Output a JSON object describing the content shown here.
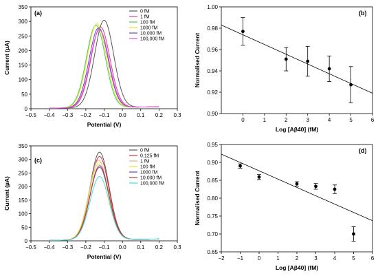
{
  "chart_data": [
    {
      "panel": "(a)",
      "type": "line",
      "xlabel": "Potential (V)",
      "ylabel": "Current (µA)",
      "xlim": [
        -0.5,
        0.3
      ],
      "ylim": [
        0,
        350
      ],
      "xticks": [
        -0.5,
        -0.4,
        -0.3,
        -0.2,
        -0.1,
        0,
        0.1,
        0.2,
        0.3
      ],
      "yticks": [
        0,
        50,
        100,
        150,
        200,
        250,
        300,
        350
      ],
      "x_range": [
        -0.4,
        0.2
      ],
      "legend_position": "top-right",
      "series": [
        {
          "name": "0 fM",
          "color": "#555555",
          "peak_x": -0.1,
          "peak_y": 305
        },
        {
          "name": "1 fM",
          "color": "#e0407a",
          "peak_x": -0.12,
          "peak_y": 282
        },
        {
          "name": "100 fM",
          "color": "#40d040",
          "peak_x": -0.145,
          "peak_y": 288
        },
        {
          "name": "1000 fM",
          "color": "#e8e030",
          "peak_x": -0.14,
          "peak_y": 293
        },
        {
          "name": "10,000 fM",
          "color": "#7040c0",
          "peak_x": -0.13,
          "peak_y": 279
        },
        {
          "name": "100,000 fM",
          "color": "#e050e0",
          "peak_x": -0.125,
          "peak_y": 272
        }
      ]
    },
    {
      "panel": "(b)",
      "type": "scatter",
      "xlabel": "Log [Aβ40] (fM)",
      "ylabel": "Normalised Current",
      "xlim": [
        -1,
        6
      ],
      "ylim": [
        0.9,
        1.0
      ],
      "xticks": [
        0,
        1,
        2,
        3,
        4,
        5,
        6
      ],
      "yticks": [
        0.9,
        0.92,
        0.94,
        0.96,
        0.98,
        1.0
      ],
      "points": [
        {
          "x": 0,
          "y": 0.977,
          "err": 0.013
        },
        {
          "x": 2,
          "y": 0.951,
          "err": 0.011
        },
        {
          "x": 3,
          "y": 0.949,
          "err": 0.014
        },
        {
          "x": 4,
          "y": 0.942,
          "err": 0.012
        },
        {
          "x": 5,
          "y": 0.927,
          "err": 0.017
        }
      ],
      "fit_line": {
        "x": [
          -1,
          6
        ],
        "y": [
          0.983,
          0.919
        ]
      }
    },
    {
      "panel": "(c)",
      "type": "line",
      "xlabel": "Potential (V)",
      "ylabel": "Current (µA)",
      "xlim": [
        -0.5,
        0.3
      ],
      "ylim": [
        0,
        350
      ],
      "xticks": [
        -0.5,
        -0.4,
        -0.3,
        -0.2,
        -0.1,
        0,
        0.1,
        0.2,
        0.3
      ],
      "yticks": [
        0,
        50,
        100,
        150,
        200,
        250,
        300,
        350
      ],
      "x_range": [
        -0.4,
        0.2
      ],
      "legend_position": "top-right",
      "series": [
        {
          "name": "0 fM",
          "color": "#555555",
          "peak_x": -0.125,
          "peak_y": 328
        },
        {
          "name": "0.125 fM",
          "color": "#e03030",
          "peak_x": -0.125,
          "peak_y": 312
        },
        {
          "name": "1 fM",
          "color": "#e0b080",
          "peak_x": -0.13,
          "peak_y": 298
        },
        {
          "name": "100 fM",
          "color": "#e8e030",
          "peak_x": -0.13,
          "peak_y": 285
        },
        {
          "name": "1000 fM",
          "color": "#7040c0",
          "peak_x": -0.125,
          "peak_y": 278
        },
        {
          "name": "10,000 fM",
          "color": "#b04040",
          "peak_x": -0.125,
          "peak_y": 272
        },
        {
          "name": "100,000 fM",
          "color": "#40e0e0",
          "peak_x": -0.125,
          "peak_y": 238
        }
      ]
    },
    {
      "panel": "(d)",
      "type": "scatter",
      "xlabel": "Log [Aβ40] (fM)",
      "ylabel": "Normalised Current",
      "xlim": [
        -2,
        6
      ],
      "ylim": [
        0.65,
        0.95
      ],
      "xticks": [
        -2,
        -1,
        0,
        1,
        2,
        3,
        4,
        5,
        6
      ],
      "yticks": [
        0.65,
        0.7,
        0.75,
        0.8,
        0.85,
        0.9,
        0.95
      ],
      "points": [
        {
          "x": -1,
          "y": 0.89,
          "err": 0.006
        },
        {
          "x": 0,
          "y": 0.859,
          "err": 0.007
        },
        {
          "x": 2,
          "y": 0.84,
          "err": 0.006
        },
        {
          "x": 3,
          "y": 0.833,
          "err": 0.008
        },
        {
          "x": 4,
          "y": 0.825,
          "err": 0.012
        },
        {
          "x": 5,
          "y": 0.7,
          "err": 0.02
        }
      ],
      "fit_line": {
        "x": [
          -2,
          6
        ],
        "y": [
          0.923,
          0.737
        ]
      }
    }
  ]
}
